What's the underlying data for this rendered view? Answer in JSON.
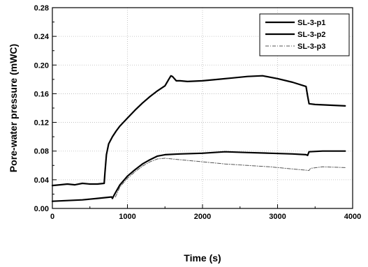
{
  "chart_data": {
    "type": "line",
    "title": "",
    "xlabel": "Time (s)",
    "ylabel": "Pore-water pressure (mWC)",
    "xlim": [
      0,
      4000
    ],
    "ylim": [
      0.0,
      0.28
    ],
    "x_ticks": [
      0,
      1000,
      2000,
      3000,
      4000
    ],
    "y_ticks": [
      0.0,
      0.04,
      0.08,
      0.12,
      0.16,
      0.2,
      0.24,
      0.28
    ],
    "x_tick_labels": [
      "0",
      "1000",
      "2000",
      "3000",
      "4000"
    ],
    "y_tick_labels": [
      "0.00",
      "0.04",
      "0.08",
      "0.12",
      "0.16",
      "0.20",
      "0.24",
      "0.28"
    ],
    "grid": true,
    "legend_position": "top-right",
    "series": [
      {
        "name": "SL-3-p1",
        "style": "solid",
        "color": "#000000",
        "x": [
          0,
          100,
          200,
          300,
          400,
          500,
          600,
          690,
          700,
          720,
          750,
          800,
          850,
          900,
          1000,
          1100,
          1200,
          1300,
          1400,
          1500,
          1550,
          1580,
          1600,
          1650,
          1700,
          1800,
          2000,
          2200,
          2400,
          2600,
          2800,
          3000,
          3200,
          3380,
          3400,
          3420,
          3500,
          3700,
          3900
        ],
        "y": [
          0.032,
          0.033,
          0.034,
          0.033,
          0.035,
          0.034,
          0.034,
          0.035,
          0.05,
          0.075,
          0.09,
          0.1,
          0.108,
          0.115,
          0.126,
          0.137,
          0.147,
          0.156,
          0.164,
          0.171,
          0.18,
          0.185,
          0.184,
          0.178,
          0.178,
          0.177,
          0.178,
          0.18,
          0.182,
          0.184,
          0.185,
          0.181,
          0.176,
          0.17,
          0.157,
          0.146,
          0.145,
          0.144,
          0.143
        ]
      },
      {
        "name": "SL-3-p2",
        "style": "solid",
        "color": "#000000",
        "x": [
          0,
          200,
          400,
          600,
          790,
          800,
          830,
          900,
          1000,
          1100,
          1200,
          1300,
          1400,
          1500,
          1700,
          2000,
          2300,
          2600,
          2900,
          3200,
          3380,
          3400,
          3420,
          3600,
          3900
        ],
        "y": [
          0.01,
          0.011,
          0.012,
          0.014,
          0.016,
          0.014,
          0.02,
          0.033,
          0.045,
          0.054,
          0.062,
          0.068,
          0.073,
          0.075,
          0.076,
          0.077,
          0.079,
          0.078,
          0.077,
          0.076,
          0.075,
          0.074,
          0.079,
          0.08,
          0.08
        ]
      },
      {
        "name": "SL-3-p3",
        "style": "dash-dot",
        "color": "#555555",
        "x": [
          840,
          900,
          1000,
          1100,
          1200,
          1300,
          1400,
          1500,
          1700,
          2000,
          2300,
          2600,
          2900,
          3200,
          3420,
          3440,
          3600,
          3900
        ],
        "y": [
          0.016,
          0.03,
          0.042,
          0.051,
          0.059,
          0.065,
          0.069,
          0.07,
          0.068,
          0.065,
          0.062,
          0.06,
          0.058,
          0.055,
          0.053,
          0.056,
          0.058,
          0.057
        ]
      }
    ]
  }
}
